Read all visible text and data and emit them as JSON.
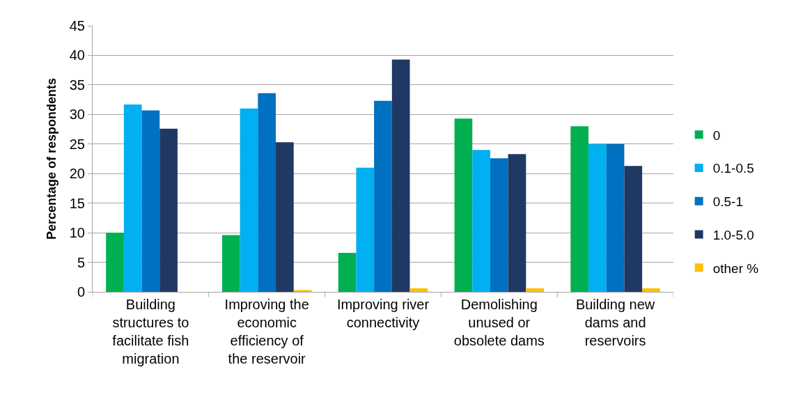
{
  "chart_data": {
    "type": "bar",
    "ylabel": "Percentage of respondents",
    "categories": [
      "Building structures to facilitate fish migration",
      "Improving the economic efficiency of the reservoir",
      "Improving river connectivity",
      "Demolishing unused or obsolete dams",
      "Building new dams and reservoirs"
    ],
    "series": [
      {
        "name": "0",
        "color": "#00b050",
        "values": [
          10.0,
          9.6,
          6.6,
          29.3,
          28.0
        ]
      },
      {
        "name": "0.1-0.5",
        "color": "#00b0f0",
        "values": [
          31.7,
          31.0,
          21.0,
          24.0,
          25.0
        ]
      },
      {
        "name": "0.5-1",
        "color": "#0070c0",
        "values": [
          30.7,
          33.6,
          32.3,
          22.6,
          25.0
        ]
      },
      {
        "name": "1.0-5.0",
        "color": "#203864",
        "values": [
          27.6,
          25.3,
          39.3,
          23.3,
          21.3
        ]
      },
      {
        "name": "other %",
        "color": "#ffc000",
        "values": [
          0,
          0.3,
          0.6,
          0.6,
          0.6
        ]
      }
    ],
    "ylim": [
      0,
      45
    ],
    "yticks": [
      0,
      5,
      10,
      15,
      20,
      25,
      30,
      35,
      40,
      45
    ],
    "grid": "y",
    "legend": "right"
  }
}
